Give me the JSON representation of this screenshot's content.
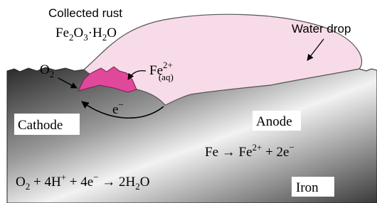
{
  "labels": {
    "collected_rust": "Collected rust",
    "rust_formula": [
      "Fe",
      "2",
      "O",
      "3",
      "·H",
      "2",
      "O"
    ],
    "water_drop": "Water drop",
    "oxygen": [
      "O",
      "2"
    ],
    "iron_ion": [
      "Fe",
      "2+",
      "(aq)"
    ],
    "electron": [
      "e",
      "−"
    ],
    "cathode": "Cathode",
    "anode": "Anode",
    "anode_reaction": [
      "Fe → Fe",
      "2+",
      " + 2e",
      "−"
    ],
    "cathode_reaction": [
      "O",
      "2",
      " + 4H",
      "+",
      " + 4e",
      "−",
      " → 2H",
      "2",
      "O"
    ],
    "iron": "Iron"
  }
}
